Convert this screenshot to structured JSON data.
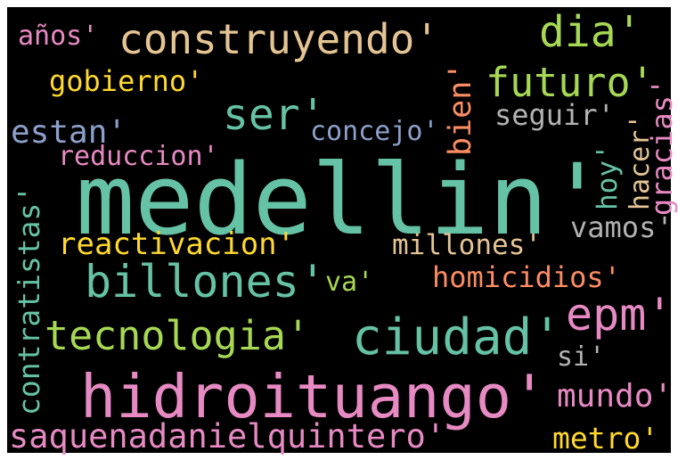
{
  "words": [
    "medellin'",
    "hidroituango'",
    "construyendo'",
    "dia'",
    "futuro'",
    "años'",
    "gobierno'",
    "ser'",
    "estan'",
    "concejo'",
    "reduccion'",
    "bien'",
    "seguir'",
    "hacer'",
    "gracias'",
    "hoy'",
    "contratistas'",
    "reactivacion'",
    "millones'",
    "vamos'",
    "billones'",
    "va'",
    "homicidios'",
    "epm'",
    "tecnologia'",
    "ciudad'",
    "si'",
    "mundo'",
    "saquenadanielquintero'",
    "metro'"
  ]
}
